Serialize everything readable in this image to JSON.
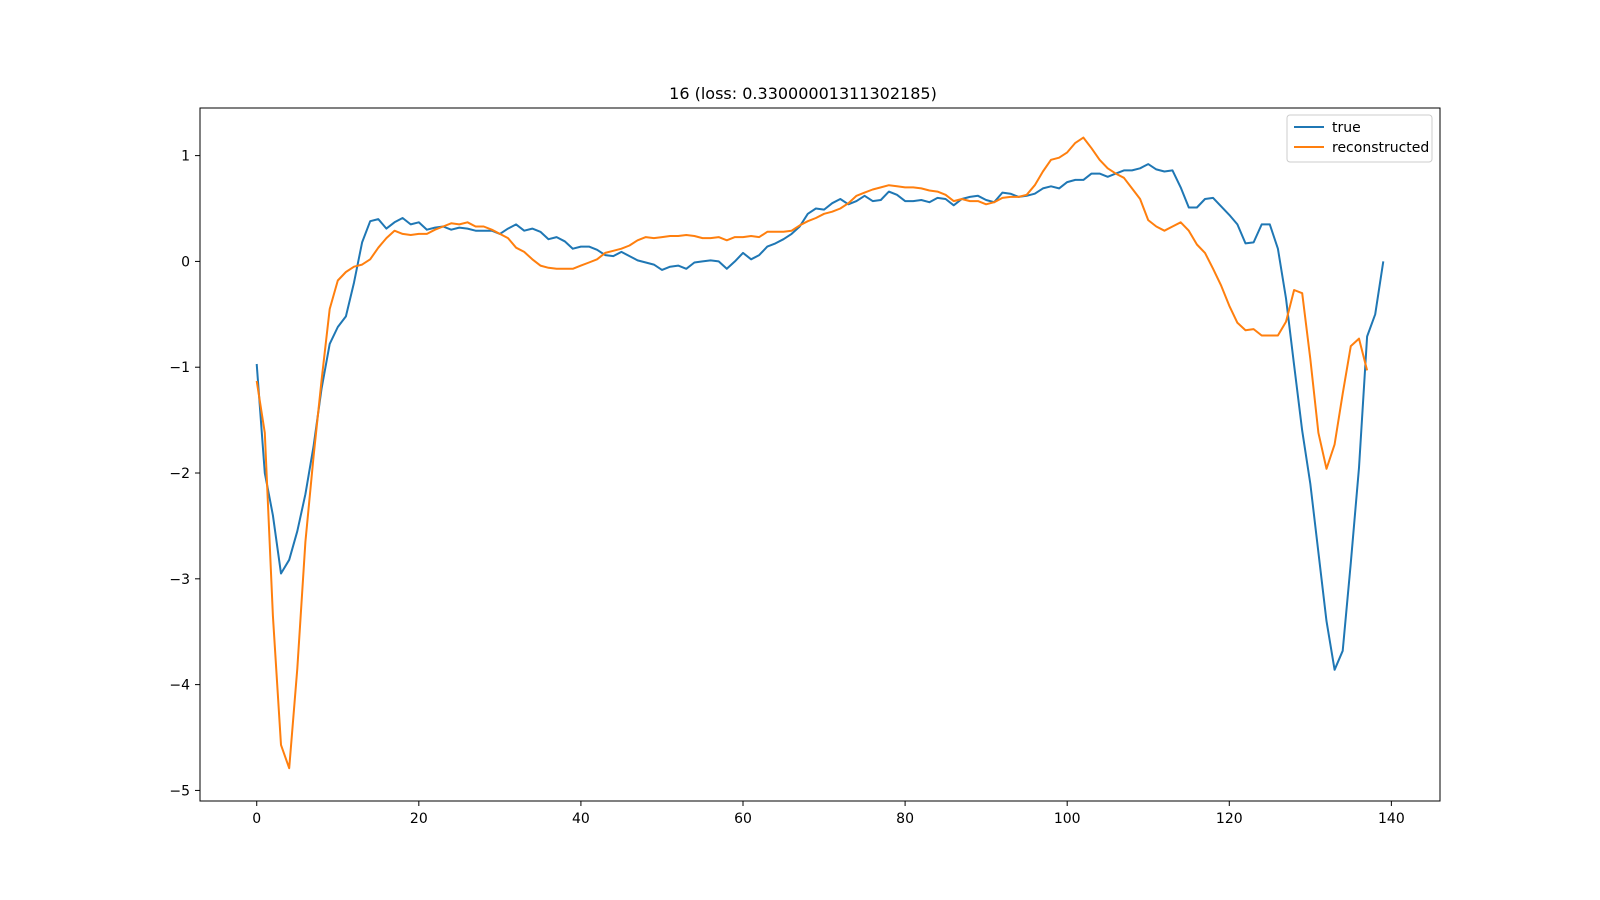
{
  "chart_data": {
    "type": "line",
    "title": "16 (loss: 0.33000001311302185)",
    "xlabel": "",
    "ylabel": "",
    "xlim": [
      -7,
      146
    ],
    "ylim": [
      -5.1,
      1.45
    ],
    "xticks": [
      0,
      20,
      40,
      60,
      80,
      100,
      120,
      140
    ],
    "yticks": [
      1,
      0,
      -1,
      -2,
      -3,
      -4,
      -5
    ],
    "ytick_labels": [
      "1",
      "0",
      "−1",
      "−2",
      "−3",
      "−4",
      "−5"
    ],
    "grid": false,
    "legend_position": "upper-right",
    "series": [
      {
        "name": "true",
        "color": "#1f77b4",
        "values": [
          -0.97,
          -2.0,
          -2.4,
          -2.95,
          -2.82,
          -2.55,
          -2.2,
          -1.75,
          -1.2,
          -0.78,
          -0.62,
          -0.52,
          -0.2,
          0.18,
          0.38,
          0.4,
          0.31,
          0.37,
          0.41,
          0.35,
          0.37,
          0.3,
          0.32,
          0.33,
          0.3,
          0.32,
          0.31,
          0.29,
          0.29,
          0.29,
          0.26,
          0.31,
          0.35,
          0.29,
          0.31,
          0.28,
          0.21,
          0.23,
          0.19,
          0.12,
          0.14,
          0.14,
          0.11,
          0.06,
          0.05,
          0.09,
          0.05,
          0.01,
          -0.01,
          -0.03,
          -0.08,
          -0.05,
          -0.04,
          -0.07,
          -0.01,
          0.0,
          0.01,
          0.0,
          -0.07,
          0.0,
          0.08,
          0.02,
          0.06,
          0.14,
          0.17,
          0.21,
          0.26,
          0.33,
          0.45,
          0.5,
          0.49,
          0.55,
          0.59,
          0.54,
          0.57,
          0.62,
          0.57,
          0.58,
          0.66,
          0.63,
          0.57,
          0.57,
          0.58,
          0.56,
          0.6,
          0.59,
          0.53,
          0.59,
          0.61,
          0.62,
          0.58,
          0.56,
          0.65,
          0.64,
          0.61,
          0.62,
          0.64,
          0.69,
          0.71,
          0.69,
          0.75,
          0.77,
          0.77,
          0.83,
          0.83,
          0.8,
          0.83,
          0.86,
          0.86,
          0.88,
          0.92,
          0.87,
          0.85,
          0.86,
          0.7,
          0.51,
          0.51,
          0.59,
          0.6,
          0.52,
          0.44,
          0.35,
          0.17,
          0.18,
          0.35,
          0.35,
          0.12,
          -0.35,
          -0.98,
          -1.6,
          -2.1,
          -2.75,
          -3.4,
          -3.86,
          -3.68,
          -2.85,
          -1.95,
          -0.71,
          -0.5,
          0.0
        ]
      },
      {
        "name": "reconstructed",
        "color": "#ff7f0e",
        "values": [
          -1.13,
          -1.62,
          -3.35,
          -4.57,
          -4.79,
          -3.85,
          -2.65,
          -1.85,
          -1.12,
          -0.45,
          -0.18,
          -0.1,
          -0.05,
          -0.03,
          0.02,
          0.13,
          0.22,
          0.29,
          0.26,
          0.25,
          0.26,
          0.26,
          0.3,
          0.33,
          0.36,
          0.35,
          0.37,
          0.33,
          0.33,
          0.3,
          0.26,
          0.22,
          0.13,
          0.09,
          0.02,
          -0.04,
          -0.06,
          -0.07,
          -0.07,
          -0.07,
          -0.04,
          -0.01,
          0.02,
          0.08,
          0.1,
          0.12,
          0.15,
          0.2,
          0.23,
          0.22,
          0.23,
          0.24,
          0.24,
          0.25,
          0.24,
          0.22,
          0.22,
          0.23,
          0.2,
          0.23,
          0.23,
          0.24,
          0.23,
          0.28,
          0.28,
          0.28,
          0.29,
          0.34,
          0.38,
          0.41,
          0.45,
          0.47,
          0.5,
          0.55,
          0.62,
          0.65,
          0.68,
          0.7,
          0.72,
          0.71,
          0.7,
          0.7,
          0.69,
          0.67,
          0.66,
          0.63,
          0.57,
          0.59,
          0.57,
          0.57,
          0.54,
          0.56,
          0.6,
          0.61,
          0.61,
          0.63,
          0.72,
          0.85,
          0.96,
          0.98,
          1.03,
          1.12,
          1.17,
          1.07,
          0.96,
          0.88,
          0.83,
          0.79,
          0.69,
          0.59,
          0.39,
          0.33,
          0.29,
          0.33,
          0.37,
          0.29,
          0.16,
          0.08,
          -0.07,
          -0.23,
          -0.42,
          -0.58,
          -0.65,
          -0.64,
          -0.7,
          -0.7,
          -0.7,
          -0.57,
          -0.27,
          -0.3,
          -0.92,
          -1.62,
          -1.96,
          -1.73,
          -1.25,
          -0.8,
          -0.73,
          -1.03
        ]
      }
    ]
  }
}
